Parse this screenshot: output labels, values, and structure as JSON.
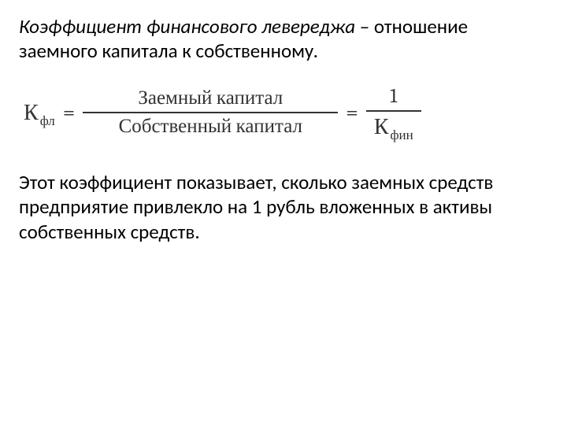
{
  "intro": {
    "term": "Коэффициент финансового левереджа",
    "rest": " – отношение заемного капитала к собственному."
  },
  "formula": {
    "left_base": "К",
    "left_sub": "фл",
    "eq": "=",
    "frac1_num": "Заемный капитал",
    "frac1_den": "Собственный капитал",
    "frac2_num": "1",
    "right_base": "К",
    "right_sub": "фин"
  },
  "body": "Этот коэффициент показывает, сколько заемных средств предприятие привлекло на 1 рубль вложенных в активы собственных средств.",
  "style": {
    "bg": "#ffffff",
    "text_color": "#000000",
    "formula_color": "#333333",
    "intro_fontsize": 25,
    "formula_fontsize": 26,
    "body_fontsize": 25
  }
}
